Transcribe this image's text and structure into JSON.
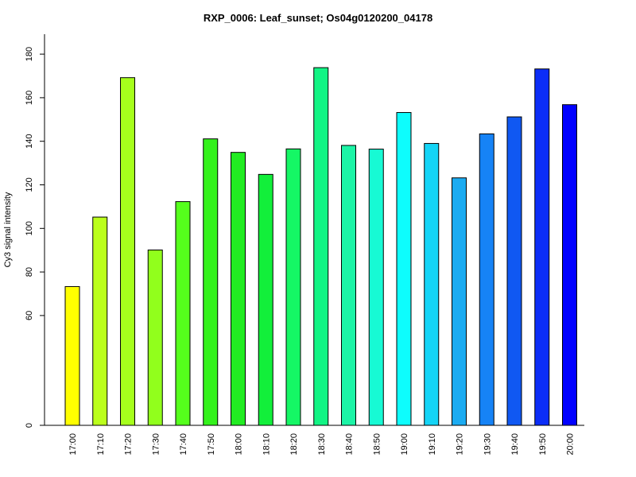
{
  "chart_data": {
    "type": "bar",
    "title": "RXP_0006: Leaf_sunset; Os04g0120200_04178",
    "xlabel": "",
    "ylabel": "Cy3 signal intensity",
    "y_ticks": [
      0,
      60,
      80,
      100,
      120,
      140,
      160,
      180
    ],
    "y_axis_break": "0 to 45 compressed",
    "categories": [
      "17:00",
      "17:10",
      "17:20",
      "17:30",
      "17:40",
      "17:50",
      "18:00",
      "18:10",
      "18:20",
      "18:30",
      "18:40",
      "18:50",
      "19:00",
      "19:10",
      "19:20",
      "19:30",
      "19:40",
      "19:50",
      "20:00"
    ],
    "values": [
      73.3,
      105.2,
      169.2,
      90.1,
      112.3,
      141.1,
      134.9,
      124.8,
      136.5,
      173.8,
      138.1,
      136.4,
      153.2,
      139.0,
      123.2,
      143.4,
      151.2,
      173.2,
      156.8
    ],
    "colors": [
      "#ffff00",
      "#bbff1c",
      "#a6ff1c",
      "#91ff1c",
      "#55ff1c",
      "#34f21c",
      "#22ec22",
      "#12ef3a",
      "#15f765",
      "#12f484",
      "#1cf4a6",
      "#17fad4",
      "#0dfdfd",
      "#14d4f6",
      "#1cabf1",
      "#1683f6",
      "#1058f2",
      "#0b2df7",
      "#0000ff"
    ],
    "grid": false,
    "legend": "none"
  }
}
